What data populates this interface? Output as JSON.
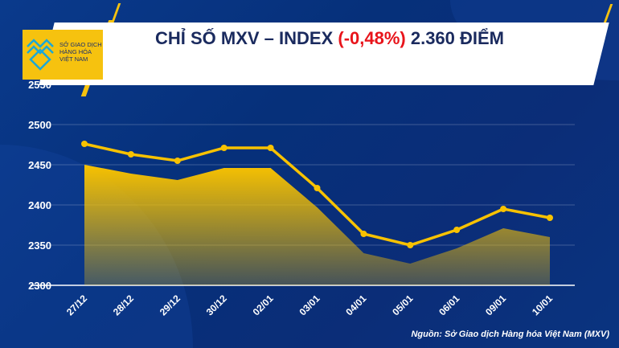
{
  "logo": {
    "line1": "SỞ GIAO DỊCH",
    "line2": "HÀNG HÓA",
    "line3": "VIỆT NAM"
  },
  "header": {
    "title_part1": "CHỈ SỐ MXV – INDEX ",
    "title_change": "(-0,48%)",
    "title_part2": " 2.360 ĐIỂM"
  },
  "colors": {
    "background": "#06307a",
    "accent": "#f6c20f",
    "negative": "#e8141b"
  },
  "source": "Nguồn: Sở Giao dịch Hàng hóa Việt Nam (MXV)",
  "chart_data": {
    "type": "line",
    "title": "CHỈ SỐ MXV – INDEX (-0,48%) 2.360 ĐIỂM",
    "categories": [
      "27/12",
      "28/12",
      "29/12",
      "30/12",
      "02/01",
      "03/01",
      "04/01",
      "05/01",
      "06/01",
      "09/01",
      "10/01"
    ],
    "series": [
      {
        "name": "line",
        "values": [
          2476,
          2463,
          2455,
          2471,
          2471,
          2421,
          2364,
          2350,
          2369,
          2395,
          2384
        ]
      },
      {
        "name": "area",
        "values": [
          2450,
          2439,
          2431,
          2446,
          2446,
          2397,
          2340,
          2327,
          2346,
          2371,
          2360
        ]
      }
    ],
    "ylim": [
      2300,
      2550
    ],
    "yticks": [
      2300,
      2350,
      2400,
      2450,
      2500,
      2550
    ],
    "grid": true,
    "xlabel": "",
    "ylabel": ""
  }
}
